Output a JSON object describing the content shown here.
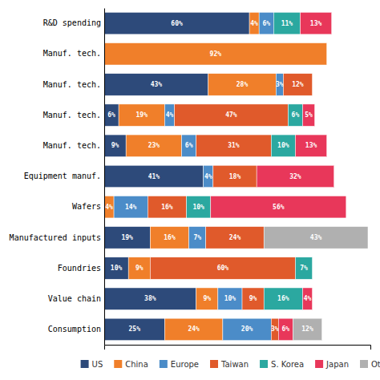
{
  "chart_data": {
    "type": "bar",
    "orientation": "horizontal",
    "stacked": true,
    "data_labels": true,
    "tick_labels": "y",
    "legend": "bottom",
    "categories": [
      "R&D spending",
      "Manuf. tech.",
      "Manuf. tech.",
      "Manuf. tech.",
      "Manuf. tech.",
      "Equipment manuf.",
      "Wafers",
      "Manufactured inputs",
      "Foundries",
      "Value chain",
      "Consumption"
    ],
    "xlim": [
      0,
      110
    ],
    "series": [
      {
        "name": "US",
        "color": "#2d4a7a",
        "values": [
          60,
          null,
          43,
          6,
          9,
          41,
          null,
          19,
          10,
          38,
          25
        ],
        "value_labels": [
          "60%",
          null,
          "43%",
          "6%",
          "9%",
          "41%",
          null,
          "19%",
          "10%",
          "38%",
          "25%"
        ]
      },
      {
        "name": "China",
        "color": "#f07f2a",
        "values": [
          4,
          92,
          28,
          19,
          23,
          null,
          4,
          16,
          9,
          9,
          24
        ],
        "value_labels": [
          "4%",
          "92%",
          "28%",
          "19%",
          "23%",
          null,
          "4%",
          "16%",
          "9%",
          "9%",
          "24%"
        ]
      },
      {
        "name": "Europe",
        "color": "#4b8cc8",
        "values": [
          6,
          null,
          3,
          4,
          6,
          4,
          14,
          7,
          null,
          10,
          20
        ],
        "value_labels": [
          "6%",
          null,
          "3%",
          "4%",
          "6%",
          "4%",
          "14%",
          "7%",
          null,
          "10%",
          "20%"
        ]
      },
      {
        "name": "Taiwan",
        "color": "#e05a2b",
        "values": [
          null,
          null,
          12,
          47,
          31,
          18,
          16,
          24,
          60,
          9,
          3
        ],
        "value_labels": [
          null,
          null,
          "12%",
          "47%",
          "31%",
          "18%",
          "16%",
          "24%",
          "60%",
          "9%",
          "3%"
        ]
      },
      {
        "name": "S. Korea",
        "color": "#2ba8a0",
        "values": [
          11,
          null,
          null,
          6,
          10,
          null,
          10,
          null,
          7,
          16,
          null
        ],
        "value_labels": [
          "11%",
          null,
          null,
          "6%",
          "10%",
          null,
          "10%",
          null,
          "7%",
          "16%",
          null
        ]
      },
      {
        "name": "Japan",
        "color": "#e8375a",
        "values": [
          13,
          null,
          null,
          5,
          13,
          32,
          56,
          null,
          null,
          4,
          6
        ],
        "value_labels": [
          "13%",
          null,
          null,
          "5%",
          "13%",
          "32%",
          "56%",
          null,
          null,
          "4%",
          "6%"
        ]
      },
      {
        "name": "Other",
        "color": "#b0b0b0",
        "values": [
          null,
          null,
          null,
          null,
          null,
          null,
          null,
          43,
          null,
          null,
          12
        ],
        "value_labels": [
          null,
          null,
          null,
          null,
          null,
          null,
          null,
          "43%",
          null,
          null,
          "12%"
        ]
      }
    ]
  }
}
